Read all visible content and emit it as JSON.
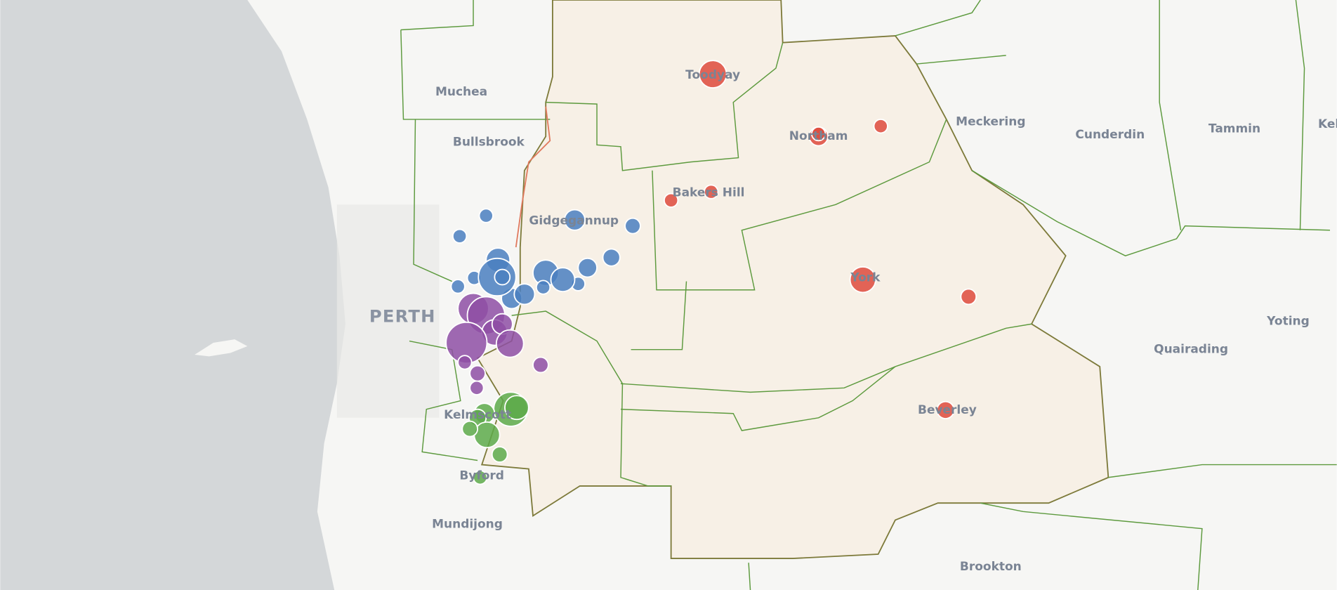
{
  "map": {
    "labels": {
      "muchea": "Muchea",
      "bullsbrook": "Bullsbrook",
      "gidgegannup": "Gidgegannup",
      "toodyay": "Toodyay",
      "northam": "Northam",
      "bakers_hill": "Bakers Hill",
      "york": "York",
      "beverley": "Beverley",
      "meckering": "Meckering",
      "cunderdin": "Cunderdin",
      "tammin": "Tammin",
      "kel_edge": "Kel",
      "perth": "PERTH",
      "yoting": "Yoting",
      "quairading": "Quairading",
      "brookton": "Brookton",
      "mundijong": "Mundijong",
      "byford": "Byford",
      "kelmscott": "Kelmscott"
    }
  }
}
